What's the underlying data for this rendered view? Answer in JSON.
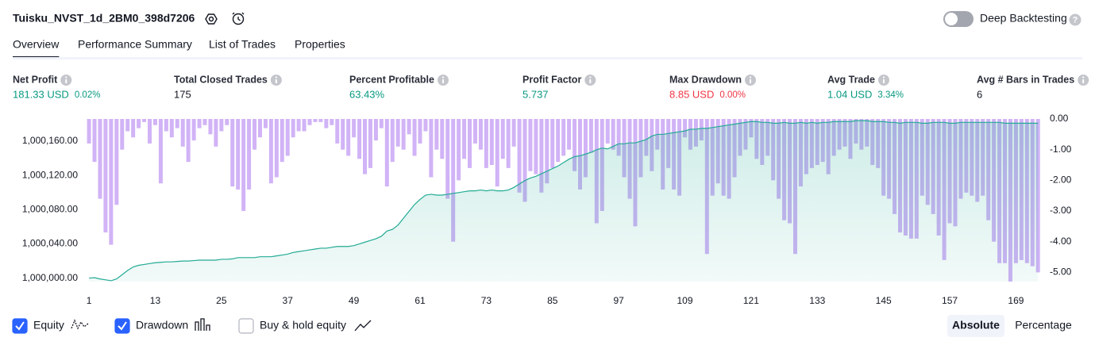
{
  "header": {
    "title": "Tuisku_NVST_1d_2BM0_398d7206",
    "toggle_label": "Deep Backtesting",
    "toggle_on": false
  },
  "tabs": [
    "Overview",
    "Performance Summary",
    "List of Trades",
    "Properties"
  ],
  "active_tab": 0,
  "metrics": [
    {
      "label": "Net Profit",
      "value": "181.33 USD",
      "percent": "0.02%",
      "color": "#089981"
    },
    {
      "label": "Total Closed Trades",
      "value": "175",
      "color": "#131722"
    },
    {
      "label": "Percent Profitable",
      "value": "63.43%",
      "color": "#089981"
    },
    {
      "label": "Profit Factor",
      "value": "5.737",
      "color": "#089981"
    },
    {
      "label": "Max Drawdown",
      "value": "8.85 USD",
      "percent": "0.00%",
      "color": "#f23645"
    },
    {
      "label": "Avg Trade",
      "value": "1.04 USD",
      "percent": "3.34%",
      "color": "#089981"
    },
    {
      "label": "Avg # Bars in Trades",
      "value": "6",
      "color": "#131722"
    }
  ],
  "chart_data": {
    "type": "equity_drawdown",
    "x": [
      1,
      2,
      3,
      4,
      5,
      6,
      7,
      8,
      9,
      10,
      11,
      12,
      13,
      14,
      15,
      16,
      17,
      18,
      19,
      20,
      21,
      22,
      23,
      24,
      25,
      26,
      27,
      28,
      29,
      30,
      31,
      32,
      33,
      34,
      35,
      36,
      37,
      38,
      39,
      40,
      41,
      42,
      43,
      44,
      45,
      46,
      47,
      48,
      49,
      50,
      51,
      52,
      53,
      54,
      55,
      56,
      57,
      58,
      59,
      60,
      61,
      62,
      63,
      64,
      65,
      66,
      67,
      68,
      69,
      70,
      71,
      72,
      73,
      74,
      75,
      76,
      77,
      78,
      79,
      80,
      81,
      82,
      83,
      84,
      85,
      86,
      87,
      88,
      89,
      90,
      91,
      92,
      93,
      94,
      95,
      96,
      97,
      98,
      99,
      100,
      101,
      102,
      103,
      104,
      105,
      106,
      107,
      108,
      109,
      110,
      111,
      112,
      113,
      114,
      115,
      116,
      117,
      118,
      119,
      120,
      121,
      122,
      123,
      124,
      125,
      126,
      127,
      128,
      129,
      130,
      131,
      132,
      133,
      134,
      135,
      136,
      137,
      138,
      139,
      140,
      141,
      142,
      143,
      144,
      145,
      146,
      147,
      148,
      149,
      150,
      151,
      152,
      153,
      154,
      155,
      156,
      157,
      158,
      159,
      160,
      161,
      162,
      163,
      164,
      165,
      166,
      167,
      168,
      169,
      170,
      171,
      172,
      173
    ],
    "xlim": [
      0.7,
      173.4
    ],
    "xticks": [
      1,
      13,
      25,
      37,
      49,
      61,
      73,
      85,
      97,
      109,
      121,
      133,
      145,
      157,
      169
    ],
    "ylim": [
      999996,
      1000186
    ],
    "yticks": [
      {
        "value": 1000000,
        "label": "1,000,000.00"
      },
      {
        "value": 1000040,
        "label": "1,000,040.00"
      },
      {
        "value": 1000080,
        "label": "1,000,080.00"
      },
      {
        "value": 1000120,
        "label": "1,000,120.00"
      },
      {
        "value": 1000160,
        "label": "1,000,160.00"
      }
    ],
    "y2lim": [
      -5.3,
      0
    ],
    "y2ticks": [
      {
        "value": 0,
        "label": "0.00"
      },
      {
        "value": -1,
        "label": "-1.00"
      },
      {
        "value": -2,
        "label": "-2.00"
      },
      {
        "value": -3,
        "label": "-3.00"
      },
      {
        "value": -4,
        "label": "-4.00"
      },
      {
        "value": -5,
        "label": "-5.00"
      }
    ],
    "series": [
      {
        "name": "Equity",
        "color": "#22ab94",
        "checked": true,
        "axis": "y",
        "values": [
          1000000,
          1000000.5,
          999999,
          999998,
          999997,
          999999,
          1000004,
          1000009,
          1000013,
          1000015,
          1000016,
          1000017,
          1000018,
          1000018.5,
          1000019,
          1000019,
          1000019.5,
          1000020,
          1000020,
          1000020.5,
          1000021,
          1000021,
          1000021,
          1000021,
          1000022,
          1000022,
          1000022.5,
          1000024,
          1000024,
          1000024,
          1000024,
          1000025,
          1000025,
          1000025,
          1000026,
          1000027,
          1000028,
          1000030,
          1000031,
          1000032,
          1000033,
          1000034,
          1000035,
          1000035,
          1000036,
          1000037,
          1000037,
          1000037,
          1000038,
          1000040,
          1000042,
          1000044,
          1000046,
          1000049,
          1000055,
          1000057,
          1000062,
          1000070,
          1000078,
          1000086,
          1000092,
          1000097,
          1000098,
          1000097,
          1000097,
          1000098,
          1000099,
          1000100,
          1000101,
          1000102,
          1000102,
          1000103,
          1000102,
          1000103,
          1000102,
          1000102,
          1000103,
          1000106,
          1000110,
          1000114,
          1000117,
          1000119,
          1000122,
          1000125,
          1000128,
          1000131,
          1000135,
          1000139,
          1000142,
          1000143,
          1000145,
          1000147,
          1000150,
          1000152,
          1000151,
          1000154,
          1000157,
          1000157,
          1000158,
          1000158,
          1000160,
          1000162,
          1000166,
          1000168,
          1000168,
          1000169,
          1000170,
          1000171,
          1000172,
          1000174,
          1000174,
          1000175,
          1000175,
          1000176,
          1000177,
          1000178,
          1000179,
          1000180,
          1000181,
          1000182,
          1000183,
          1000183,
          1000182,
          1000182,
          1000181,
          1000181,
          1000182,
          1000181,
          1000181,
          1000182,
          1000181,
          1000182,
          1000181,
          1000182,
          1000182,
          1000183,
          1000183,
          1000183,
          1000183,
          1000184,
          1000184,
          1000184,
          1000183,
          1000183,
          1000183,
          1000182,
          1000182,
          1000181,
          1000182,
          1000182,
          1000182,
          1000181,
          1000181,
          1000182,
          1000182,
          1000182,
          1000181,
          1000181,
          1000182,
          1000182,
          1000182,
          1000182,
          1000182,
          1000182,
          1000182,
          1000182,
          1000181,
          1000181,
          1000181,
          1000181,
          1000181,
          1000181,
          1000181
        ]
      },
      {
        "name": "Drawdown",
        "color": "#c9a6f5",
        "checked": true,
        "axis": "y2",
        "values": [
          -0.8,
          -1.4,
          -2.6,
          -3.7,
          -4.1,
          -2.8,
          -1.0,
          -0.4,
          -0.6,
          -0.3,
          -0.1,
          -0.8,
          -0.2,
          -2.1,
          -0.4,
          -0.6,
          -0.3,
          -0.9,
          -1.4,
          -0.7,
          -0.3,
          -0.2,
          -0.5,
          -0.9,
          -0.4,
          -0.2,
          -2.2,
          -2.3,
          -3.0,
          -2.3,
          -1.0,
          -0.6,
          -0.3,
          -2.1,
          -1.9,
          -1.4,
          -1.2,
          -0.6,
          -0.4,
          -0.4,
          -0.2,
          -0.1,
          -0.1,
          -0.3,
          -0.2,
          -0.8,
          -1.0,
          -1.2,
          -0.6,
          -1.3,
          -1.8,
          -1.6,
          -0.7,
          -0.3,
          -2.2,
          -1.4,
          -0.9,
          -1.0,
          -0.5,
          -1.2,
          -0.8,
          -0.4,
          -1.9,
          -1.0,
          -1.3,
          -2.6,
          -4.0,
          -2.0,
          -1.3,
          -1.6,
          -0.8,
          -1.0,
          -1.6,
          -1.5,
          -2.2,
          -1.3,
          -1.6,
          -0.9,
          -2.4,
          -2.7,
          -1.7,
          -1.8,
          -2.4,
          -2.1,
          -1.6,
          -1.4,
          -1.2,
          -1.0,
          -1.7,
          -2.3,
          -1.9,
          -1.1,
          -3.4,
          -3.0,
          -0.8,
          -1.0,
          -1.2,
          -1.9,
          -2.6,
          -3.5,
          -1.9,
          -1.2,
          -1.7,
          -1.0,
          -2.3,
          -1.6,
          -2.3,
          -2.5,
          -0.6,
          -1.0,
          -0.9,
          -0.7,
          -4.4,
          -2.5,
          -2.1,
          -2.5,
          -2.6,
          -1.9,
          -1.2,
          -1.0,
          -0.6,
          -1.3,
          -1.5,
          -1.2,
          -2.0,
          -2.6,
          -3.3,
          -3.4,
          -4.4,
          -2.2,
          -1.8,
          -1.6,
          -1.5,
          -1.4,
          -1.8,
          -1.2,
          -1.0,
          -0.9,
          -1.3,
          -0.8,
          -1.0,
          -0.9,
          -1.5,
          -1.6,
          -2.5,
          -2.6,
          -3.1,
          -3.7,
          -3.8,
          -3.9,
          -3.9,
          -2.5,
          -2.8,
          -3.1,
          -3.8,
          -4.6,
          -3.4,
          -3.5,
          -2.6,
          -2.4,
          -2.5,
          -2.7,
          -2.5,
          -3.3,
          -4.0,
          -4.7,
          -4.7,
          -5.3,
          -4.7,
          -4.6,
          -4.7,
          -4.8,
          -5.0
        ]
      }
    ],
    "extra_toggle": {
      "name": "Buy & hold equity",
      "checked": false
    }
  },
  "modes": [
    "Absolute",
    "Percentage"
  ],
  "active_mode": 0
}
